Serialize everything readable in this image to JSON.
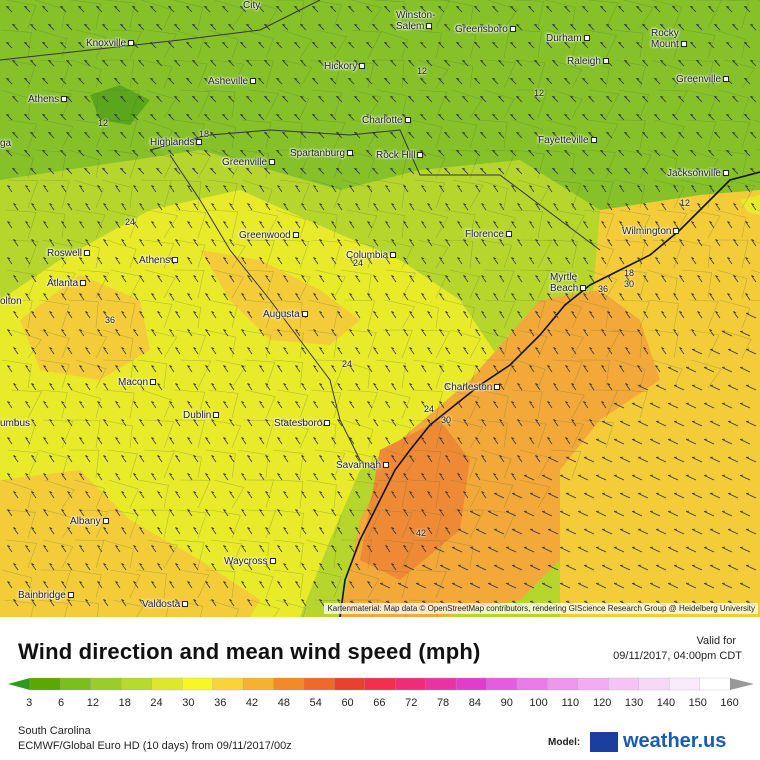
{
  "map": {
    "cities": [
      {
        "name": "City"
      },
      {
        "name": "Winston-\nSalem"
      },
      {
        "name": "Greensboro"
      },
      {
        "name": "Durham"
      },
      {
        "name": "Rocky\nMount"
      },
      {
        "name": "Knoxville"
      },
      {
        "name": "Raleigh"
      },
      {
        "name": "Hickory"
      },
      {
        "name": "Asheville"
      },
      {
        "name": "Greenville"
      },
      {
        "name": "Athens"
      },
      {
        "name": "Charlotte"
      },
      {
        "name": "Highlands"
      },
      {
        "name": "Spartanburg"
      },
      {
        "name": "Rock Hill"
      },
      {
        "name": "Fayetteville"
      },
      {
        "name": "Greenville"
      },
      {
        "name": "Jacksonville"
      },
      {
        "name": "Wilmington"
      },
      {
        "name": "Florence"
      },
      {
        "name": "Greenwood"
      },
      {
        "name": "Roswell"
      },
      {
        "name": "Athens"
      },
      {
        "name": "Columbia"
      },
      {
        "name": "Atlanta"
      },
      {
        "name": "Myrtle\nBeach"
      },
      {
        "name": "Augusta"
      },
      {
        "name": "Macon"
      },
      {
        "name": "Charleston"
      },
      {
        "name": "Dublin"
      },
      {
        "name": "Statesboro"
      },
      {
        "name": "Savannah"
      },
      {
        "name": "Albany"
      },
      {
        "name": "Waycross"
      },
      {
        "name": "Bainbridge"
      },
      {
        "name": "Valdosta"
      },
      {
        "name": "ga"
      },
      {
        "name": "olton"
      },
      {
        "name": "umbus"
      }
    ],
    "contour_labels": [
      "12",
      "12",
      "12",
      "18",
      "12",
      "24",
      "24",
      "24",
      "36",
      "36",
      "30",
      "18",
      "30",
      "24",
      "42"
    ],
    "attribution": "Kartenmaterial: Map data © OpenStreetMap contributors, rendering GIScience Research Group @ Heidelberg University"
  },
  "panel": {
    "title": "Wind direction and mean wind speed (mph)",
    "valid_label": "Valid for",
    "valid_date": "09/11/2017, 04:00pm CDT",
    "region": "South Carolina",
    "model_run": "ECMWF/Global Euro HD (10 days) from 09/11/2017/00z",
    "model_label": "Model:",
    "brand": "weather.us"
  },
  "legend": {
    "values": [
      "3",
      "6",
      "12",
      "18",
      "24",
      "30",
      "36",
      "42",
      "48",
      "54",
      "60",
      "66",
      "72",
      "78",
      "84",
      "90",
      "100",
      "110",
      "120",
      "130",
      "140",
      "150",
      "160"
    ],
    "colors": [
      "#5aa800",
      "#7cbf1c",
      "#9acd2a",
      "#b8d92e",
      "#dde82c",
      "#f7f724",
      "#f9d33a",
      "#f6b131",
      "#f28a28",
      "#ee6a2a",
      "#e8412e",
      "#f2304d",
      "#ee2c78",
      "#ea33a3",
      "#e13dcb",
      "#e55ddd",
      "#e97ae6",
      "#ee95ec",
      "#f2adf1",
      "#f5c3f4",
      "#f8d8f7",
      "#fbeafa",
      "#ffffff"
    ],
    "arrow_left_color": "#2e9b1a",
    "arrow_right_color": "#999999"
  },
  "colors": {
    "field_green_dark": "#5aa61c",
    "field_green": "#86c12a",
    "field_yellowgreen": "#b7d62d",
    "field_yellow": "#e8ea2a",
    "field_gold": "#f4cc3a",
    "field_orange": "#f2a93a",
    "field_deep_orange": "#ee8a36"
  }
}
